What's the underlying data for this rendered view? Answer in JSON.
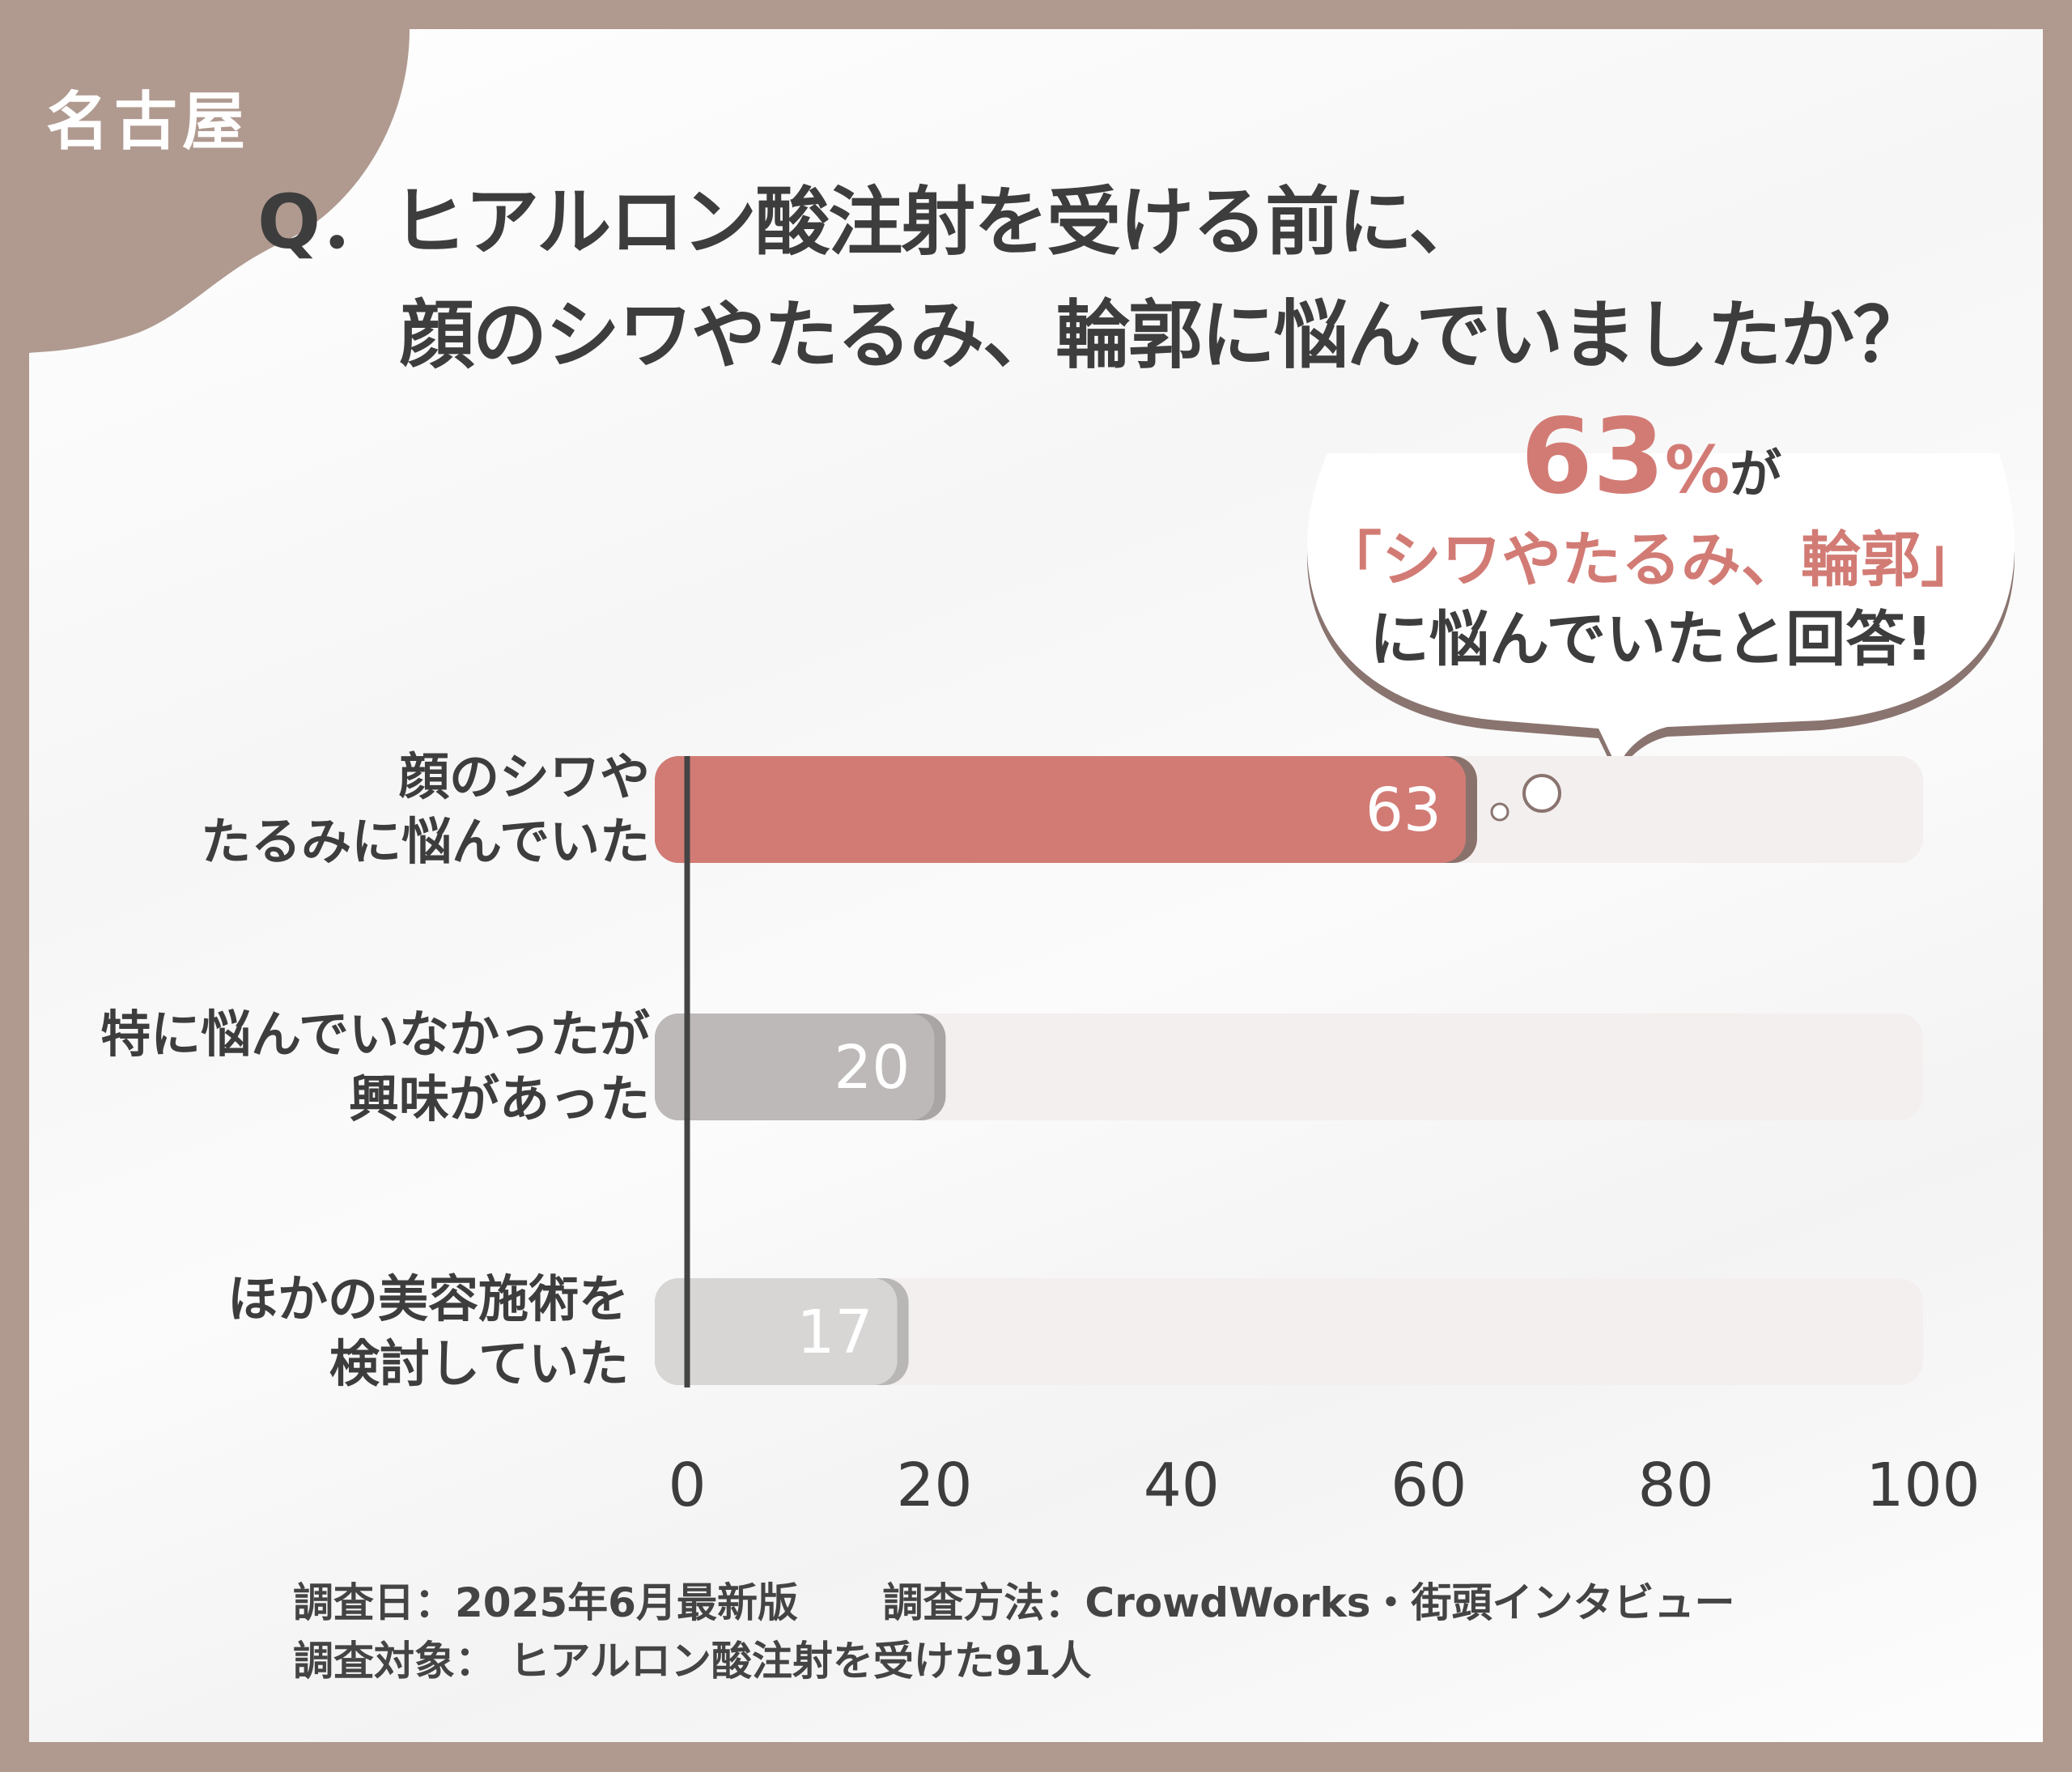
{
  "region_label": "名古屋",
  "title": {
    "line1": "Q．ヒアルロン酸注射を受ける前に、",
    "line2": "顔のシワやたるみ、輪郭に悩んでいましたか？"
  },
  "callout": {
    "number": "63",
    "percent": "%",
    "suffix": "が",
    "line2": "「シワやたるみ、輪郭」",
    "line3": "に悩んでいたと回答!"
  },
  "colors": {
    "frame": "#b09a90",
    "highlight_bar": "#d27b75",
    "bar_gray": "#bdb9b8",
    "bar_light_gray": "#d8d5d5",
    "track": "#f3efee",
    "text": "#3d3d3d"
  },
  "chart_data": {
    "type": "bar",
    "orientation": "horizontal",
    "categories": [
      [
        "顔のシワや",
        "たるみに悩んでいた"
      ],
      [
        "特に悩んでいなかったが",
        "興味があった"
      ],
      [
        "ほかの美容施術を",
        "検討していた"
      ]
    ],
    "values": [
      63,
      20,
      17
    ],
    "xlim": [
      0,
      100
    ],
    "xticks": [
      "0",
      "20",
      "40",
      "60",
      "80",
      "100"
    ],
    "grid": false,
    "unit": "%"
  },
  "footer": {
    "date": "調査日：2025年6月最新版",
    "method": "調査方法：CrowdWorks・街頭インタビュー",
    "target": "調査対象： ヒアルロン酸注射を受けた91人"
  }
}
